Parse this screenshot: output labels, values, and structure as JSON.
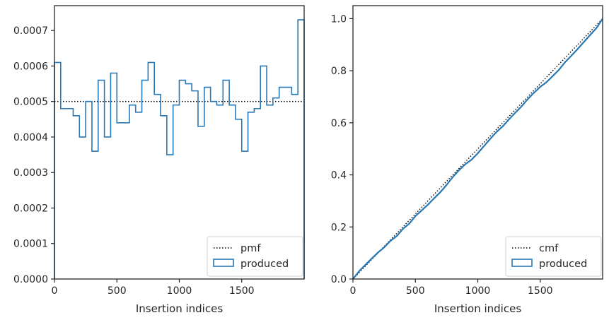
{
  "colors": {
    "produced": "#2878b5",
    "reference": "#000000",
    "axes": "#262626",
    "legend_border": "#d0d0d0"
  },
  "chart_data": [
    {
      "type": "step",
      "xlabel": "Insertion indices",
      "ylabel": "",
      "xlim": [
        0,
        2000
      ],
      "ylim": [
        0,
        0.00077
      ],
      "xticks": [
        0,
        500,
        1000,
        1500
      ],
      "xtick_labels": [
        "0",
        "500",
        "1000",
        "1500"
      ],
      "yticks": [
        0,
        0.0001,
        0.0002,
        0.0003,
        0.0004,
        0.0005,
        0.0006,
        0.0007
      ],
      "ytick_labels": [
        "0.0000",
        "0.0001",
        "0.0002",
        "0.0003",
        "0.0004",
        "0.0005",
        "0.0006",
        "0.0007"
      ],
      "legend_position": "lower right",
      "legend": [
        "pmf",
        "produced"
      ],
      "reference": {
        "name": "pmf",
        "style": "dotted",
        "x": [
          0,
          2000
        ],
        "y": [
          0.0005,
          0.0005
        ]
      },
      "series": [
        {
          "name": "produced",
          "bin_width": 50,
          "values": [
            0.00061,
            0.00048,
            0.00048,
            0.00046,
            0.0004,
            0.0005,
            0.00036,
            0.00056,
            0.0004,
            0.00058,
            0.00044,
            0.00044,
            0.00049,
            0.00047,
            0.00056,
            0.00061,
            0.00052,
            0.00046,
            0.00035,
            0.00049,
            0.00056,
            0.00055,
            0.00053,
            0.00043,
            0.00054,
            0.0005,
            0.00049,
            0.00056,
            0.00049,
            0.00045,
            0.00036,
            0.00047,
            0.00048,
            0.0006,
            0.00049,
            0.00051,
            0.00054,
            0.00054,
            0.00052,
            0.00073
          ]
        }
      ]
    },
    {
      "type": "line",
      "xlabel": "Insertion indices",
      "ylabel": "",
      "xlim": [
        0,
        2000
      ],
      "ylim": [
        0,
        1.05
      ],
      "xticks": [
        0,
        500,
        1000,
        1500
      ],
      "xtick_labels": [
        "0",
        "500",
        "1000",
        "1500"
      ],
      "yticks": [
        0,
        0.2,
        0.4,
        0.6,
        0.8,
        1.0
      ],
      "ytick_labels": [
        "0.0",
        "0.2",
        "0.4",
        "0.6",
        "0.8",
        "1.0"
      ],
      "legend_position": "lower right",
      "legend": [
        "cmf",
        "produced"
      ],
      "reference": {
        "name": "cmf",
        "style": "dotted",
        "x": [
          0,
          2000
        ],
        "y": [
          0,
          1.0
        ]
      },
      "series": [
        {
          "name": "produced",
          "x": [
            0,
            50,
            100,
            150,
            200,
            250,
            300,
            350,
            400,
            450,
            500,
            550,
            600,
            650,
            700,
            750,
            800,
            850,
            900,
            950,
            1000,
            1050,
            1100,
            1150,
            1200,
            1250,
            1300,
            1350,
            1400,
            1450,
            1500,
            1550,
            1600,
            1650,
            1700,
            1750,
            1800,
            1850,
            1900,
            1950,
            2000
          ],
          "y": [
            0.0,
            0.0305,
            0.0545,
            0.0785,
            0.1015,
            0.1215,
            0.1465,
            0.1645,
            0.1925,
            0.2125,
            0.2415,
            0.2635,
            0.2855,
            0.31,
            0.3335,
            0.3615,
            0.392,
            0.418,
            0.441,
            0.4585,
            0.483,
            0.511,
            0.5385,
            0.565,
            0.5865,
            0.6135,
            0.6385,
            0.663,
            0.691,
            0.7155,
            0.738,
            0.756,
            0.7795,
            0.8035,
            0.8335,
            0.858,
            0.8835,
            0.9105,
            0.9375,
            0.9635,
            1.0
          ]
        }
      ]
    }
  ]
}
